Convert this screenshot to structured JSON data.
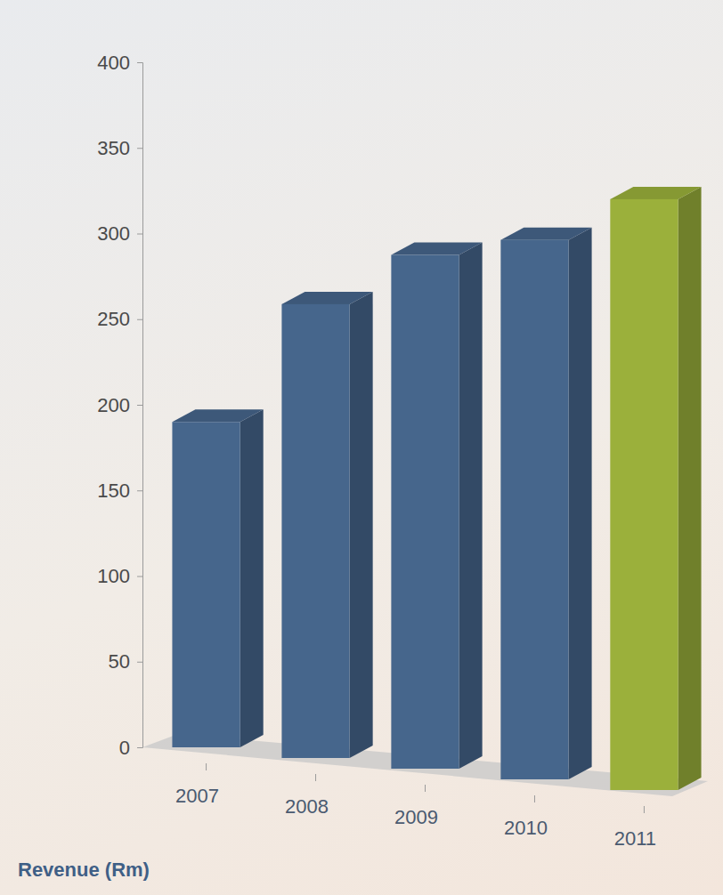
{
  "chart_data": {
    "type": "bar",
    "title": "Revenue (Rm)",
    "categories": [
      "2007",
      "2008",
      "2009",
      "2010",
      "2011"
    ],
    "values": [
      190,
      265,
      300,
      315,
      345
    ],
    "colors": [
      "#46668c",
      "#46668c",
      "#46668c",
      "#46668c",
      "#9bb03b"
    ],
    "ylim": [
      0,
      400
    ],
    "yticks": [
      0,
      50,
      100,
      150,
      200,
      250,
      300,
      350,
      400
    ],
    "grid": false
  }
}
